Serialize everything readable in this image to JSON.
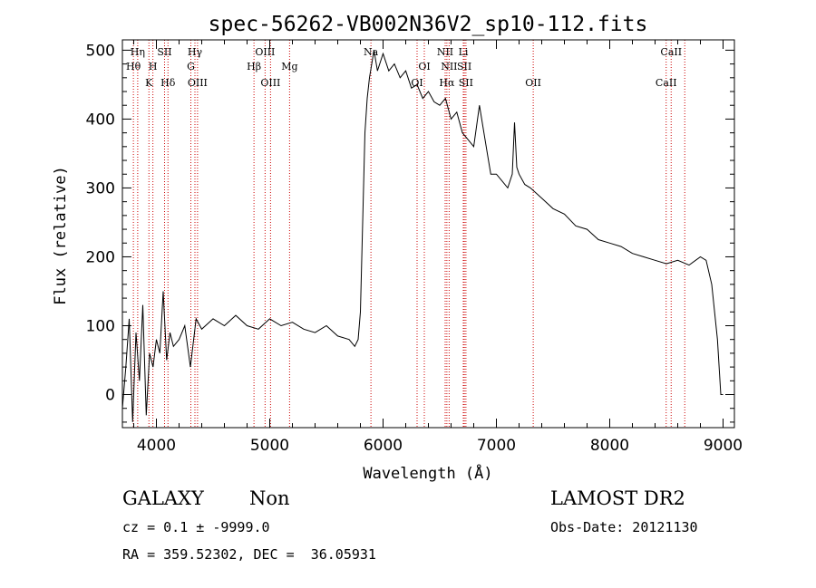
{
  "chart_data": {
    "type": "line",
    "title": "spec-56262-VB002N36V2_sp10-112.fits",
    "xlabel": "Wavelength (Å)",
    "ylabel": "Flux (relative)",
    "xlim": [
      3700,
      9100
    ],
    "ylim": [
      -48,
      515
    ],
    "xticks": [
      4000,
      5000,
      6000,
      7000,
      8000,
      9000
    ],
    "yticks": [
      0,
      100,
      200,
      300,
      400,
      500
    ],
    "grid": false,
    "line_color": "#000000",
    "marker_color": "#cc0000",
    "series": [
      {
        "x": [
          3700,
          3730,
          3760,
          3790,
          3820,
          3850,
          3880,
          3910,
          3940,
          3970,
          4000,
          4030,
          4060,
          4090,
          4120,
          4150,
          4200,
          4250,
          4300,
          4350,
          4400,
          4500,
          4600,
          4700,
          4800,
          4900,
          5000,
          5100,
          5200,
          5300,
          5400,
          5500,
          5600,
          5700,
          5750,
          5780,
          5800,
          5820,
          5840,
          5860,
          5880,
          5900,
          5920,
          5950,
          6000,
          6050,
          6100,
          6150,
          6200,
          6250,
          6300,
          6350,
          6400,
          6450,
          6500,
          6550,
          6600,
          6650,
          6700,
          6750,
          6800,
          6850,
          6880,
          6900,
          6920,
          6950,
          7000,
          7050,
          7100,
          7140,
          7160,
          7180,
          7200,
          7250,
          7300,
          7400,
          7500,
          7600,
          7700,
          7800,
          7900,
          8000,
          8100,
          8200,
          8300,
          8400,
          8500,
          8600,
          8700,
          8800,
          8850,
          8900,
          8950,
          8980,
          9000
        ],
        "y": [
          -20,
          40,
          110,
          -40,
          90,
          20,
          130,
          -30,
          60,
          40,
          80,
          60,
          150,
          50,
          90,
          70,
          80,
          100,
          40,
          110,
          95,
          110,
          100,
          115,
          100,
          95,
          110,
          100,
          105,
          95,
          90,
          100,
          85,
          80,
          70,
          80,
          120,
          250,
          380,
          430,
          460,
          480,
          500,
          470,
          495,
          470,
          480,
          460,
          470,
          445,
          450,
          430,
          440,
          425,
          420,
          430,
          400,
          410,
          380,
          370,
          360,
          420,
          390,
          370,
          350,
          320,
          320,
          310,
          300,
          320,
          395,
          330,
          320,
          305,
          300,
          285,
          270,
          262,
          245,
          240,
          225,
          220,
          215,
          205,
          200,
          195,
          190,
          195,
          188,
          200,
          195,
          160,
          80,
          0,
          0
        ]
      }
    ],
    "line_markers": [
      {
        "label": "Hη",
        "wl": 3835,
        "row": 0
      },
      {
        "label": "Hθ",
        "wl": 3797,
        "row": 1
      },
      {
        "label": "K",
        "wl": 3934,
        "row": 2
      },
      {
        "label": "SII",
        "wl": 4072,
        "row": 0
      },
      {
        "label": "H",
        "wl": 3969,
        "row": 1
      },
      {
        "label": "Hδ",
        "wl": 4102,
        "row": 2
      },
      {
        "label": "Hγ",
        "wl": 4340,
        "row": 0
      },
      {
        "label": "G",
        "wl": 4304,
        "row": 1
      },
      {
        "label": "OIII",
        "wl": 4363,
        "row": 2
      },
      {
        "label": "OIII",
        "wl": 4959,
        "row": 0
      },
      {
        "label": "Hβ",
        "wl": 4861,
        "row": 1
      },
      {
        "label": "OIII",
        "wl": 5007,
        "row": 2
      },
      {
        "label": "Mg",
        "wl": 5175,
        "row": 1
      },
      {
        "label": "Na",
        "wl": 5893,
        "row": 0
      },
      {
        "label": "OI",
        "wl": 6300,
        "row": 2
      },
      {
        "label": "OI",
        "wl": 6364,
        "row": 1
      },
      {
        "label": "NII",
        "wl": 6548,
        "row": 0
      },
      {
        "label": "Li",
        "wl": 6708,
        "row": 0
      },
      {
        "label": "NII",
        "wl": 6583,
        "row": 1
      },
      {
        "label": "SII",
        "wl": 6717,
        "row": 1
      },
      {
        "label": "Hα",
        "wl": 6563,
        "row": 2
      },
      {
        "label": "SII",
        "wl": 6731,
        "row": 2
      },
      {
        "label": "OII",
        "wl": 7325,
        "row": 2
      },
      {
        "label": "CaII",
        "wl": 8542,
        "row": 0
      },
      {
        "label": "CaII",
        "wl": 8498,
        "row": 2
      },
      {
        "label": "",
        "wl": 8662,
        "row": 2
      }
    ]
  },
  "info": {
    "classification": "GALAXY",
    "subclass": "Non",
    "redshift": "cz = 0.1 ± -9999.0",
    "coords": "RA = 359.52302, DEC =  36.05931",
    "survey": "LAMOST DR2",
    "obs_date": "Obs-Date: 20121130"
  }
}
